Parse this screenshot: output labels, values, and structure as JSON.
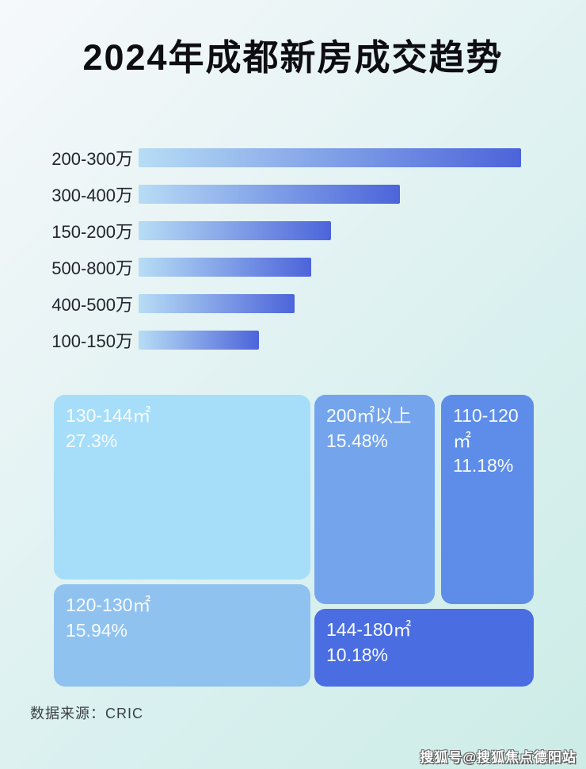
{
  "title": "2024年成都新房成交趋势",
  "chart_data": [
    {
      "type": "bar",
      "orientation": "horizontal",
      "title": "2024年成都新房成交趋势",
      "categories": [
        "200-300万",
        "300-400万",
        "150-200万",
        "500-800万",
        "400-500万",
        "100-150万"
      ],
      "values_relative_pct": [
        100,
        68.3,
        50.3,
        45.1,
        40.8,
        31.5
      ],
      "value_labels_shown": false,
      "note": "bars are unlabeled in the image; values are lengths relative to the longest bar (200-300万 = 100)",
      "bar_gradient": [
        "#b7ddf5",
        "#4c64da"
      ],
      "axis": "none",
      "grid": false,
      "legend": "none"
    },
    {
      "type": "treemap",
      "title": "",
      "items": [
        {
          "label": "130-144㎡",
          "value": 27.3,
          "value_pct": "27.3%",
          "color": "#a6def9"
        },
        {
          "label": "200㎡以上",
          "value": 15.48,
          "value_pct": "15.48%",
          "color": "#74a4ec"
        },
        {
          "label": "110-120㎡",
          "value": 11.18,
          "value_pct": "11.18%",
          "color": "#5e8de9"
        },
        {
          "label": "120-130㎡",
          "value": 15.94,
          "value_pct": "15.94%",
          "color": "#90c2f0"
        },
        {
          "label": "144-180㎡",
          "value": 10.18,
          "value_pct": "10.18%",
          "color": "#4a6de2"
        }
      ],
      "text_color": "#f7fcff",
      "legend": "none"
    }
  ],
  "footer": {
    "source_label": "数据来源：CRIC"
  },
  "watermark": "搜狐号@搜狐焦点德阳站"
}
